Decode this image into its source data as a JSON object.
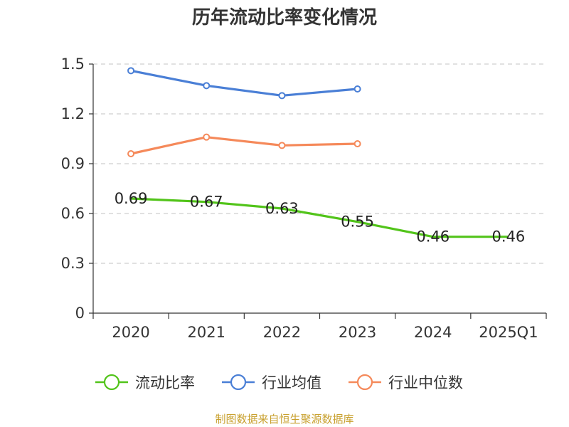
{
  "chart_data": {
    "type": "line",
    "title": "历年流动比率变化情况",
    "categories": [
      "2020",
      "2021",
      "2022",
      "2023",
      "2024",
      "2025Q1"
    ],
    "ylim": [
      0,
      1.5
    ],
    "yticks": [
      "0",
      "0.3",
      "0.6",
      "0.9",
      "1.2",
      "1.5"
    ],
    "ytick_values": [
      0,
      0.3,
      0.6,
      0.9,
      1.2,
      1.5
    ],
    "grid": true,
    "series": [
      {
        "name": "流动比率",
        "color": "#52c41a",
        "values": [
          0.69,
          0.67,
          0.63,
          0.55,
          0.46,
          0.46
        ],
        "labels": [
          "0.69",
          "0.67",
          "0.63",
          "0.55",
          "0.46",
          "0.46"
        ],
        "markers": false
      },
      {
        "name": "行业均值",
        "color": "#4a7fd6",
        "values": [
          1.46,
          1.37,
          1.31,
          1.35,
          null,
          null
        ],
        "markers": true
      },
      {
        "name": "行业中位数",
        "color": "#f5895a",
        "values": [
          0.96,
          1.06,
          1.01,
          1.02,
          null,
          null
        ],
        "markers": true
      }
    ],
    "legend_position": "bottom-center",
    "source": "制图数据来自恒生聚源数据库"
  }
}
